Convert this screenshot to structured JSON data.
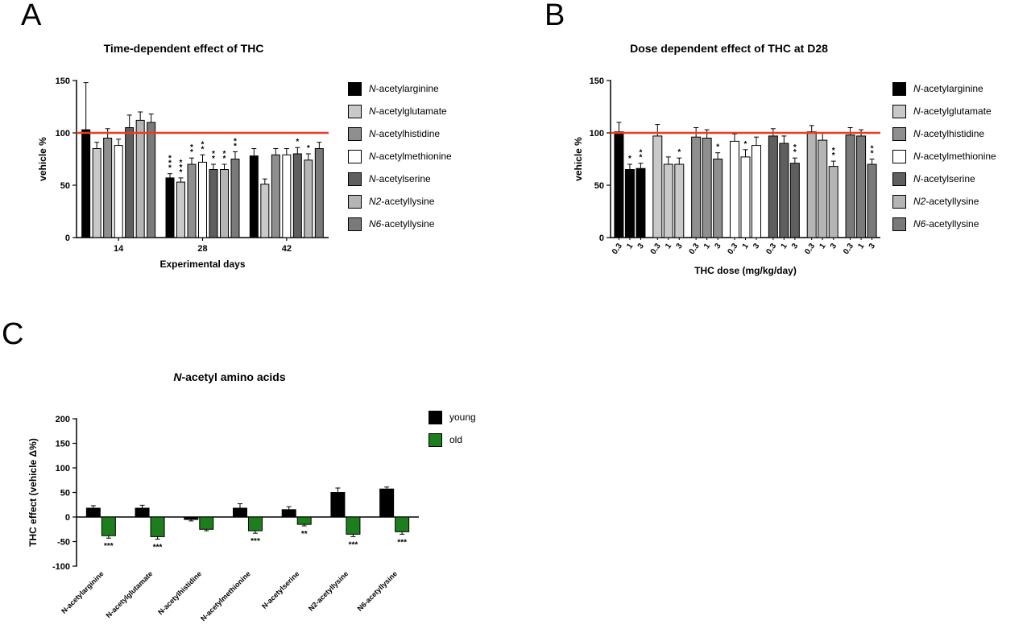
{
  "figure": {
    "panels": {
      "a": {
        "label": "A",
        "title": "Time-dependent effect of THC"
      },
      "b": {
        "label": "B",
        "title": "Dose dependent effect of THC at D28"
      },
      "c": {
        "label": "C",
        "title": "N-acetyl amino acids"
      }
    }
  },
  "colors": {
    "reference_line": "#ee3b23",
    "young": "#000000",
    "old": "#1e7e1e",
    "axis": "#000000"
  },
  "chart_data": [
    {
      "id": "a",
      "type": "bar",
      "title": "Time-dependent effect of THC",
      "xlabel": "Experimental days",
      "ylabel": "vehicle %",
      "ylim": [
        0,
        150
      ],
      "yticks": [
        0,
        50,
        100,
        150
      ],
      "reference_line": 100,
      "legend_position": "right",
      "categories": [
        "14",
        "28",
        "42"
      ],
      "series": [
        {
          "name": "N-acetylarginine",
          "color": "#000000",
          "values": [
            103,
            57,
            78
          ],
          "errors": [
            45,
            4,
            7
          ],
          "sig": [
            "",
            "***",
            ""
          ]
        },
        {
          "name": "N-acetylglutamate",
          "color": "#c9c9c9",
          "values": [
            85,
            53,
            51
          ],
          "errors": [
            6,
            4,
            5
          ],
          "sig": [
            "",
            "***",
            ""
          ]
        },
        {
          "name": "N-acetylhistidine",
          "color": "#8f8f8f",
          "values": [
            95,
            70,
            79
          ],
          "errors": [
            9,
            6,
            6
          ],
          "sig": [
            "",
            "**",
            ""
          ]
        },
        {
          "name": "N-acetylmethionine",
          "color": "#ffffff",
          "values": [
            88,
            72,
            79
          ],
          "errors": [
            6,
            7,
            6
          ],
          "sig": [
            "",
            "**",
            ""
          ]
        },
        {
          "name": "N-acetylserine",
          "color": "#5f5f5f",
          "values": [
            105,
            65,
            80
          ],
          "errors": [
            12,
            5,
            6
          ],
          "sig": [
            "",
            "**",
            "*"
          ]
        },
        {
          "name": "N2-acetyllysine",
          "color": "#b5b5b5",
          "values": [
            112,
            65,
            74
          ],
          "errors": [
            8,
            5,
            6
          ],
          "sig": [
            "",
            "**",
            "*"
          ]
        },
        {
          "name": "N6-acetyllysine",
          "color": "#7a7a7a",
          "values": [
            110,
            75,
            85
          ],
          "errors": [
            8,
            7,
            6
          ],
          "sig": [
            "",
            "**",
            ""
          ]
        }
      ]
    },
    {
      "id": "b",
      "type": "bar",
      "title": "Dose dependent effect of THC at D28",
      "xlabel": "THC dose (mg/kg/day)",
      "ylabel": "vehicle %",
      "ylim": [
        0,
        150
      ],
      "yticks": [
        0,
        50,
        100,
        150
      ],
      "reference_line": 100,
      "legend_position": "right",
      "dose_labels": [
        "0.3",
        "1",
        "3"
      ],
      "groups": [
        {
          "name": "N-acetylarginine",
          "color": "#000000",
          "values": [
            101,
            65,
            66
          ],
          "errors": [
            9,
            5,
            5
          ],
          "sig": [
            "",
            "*",
            "**"
          ]
        },
        {
          "name": "N-acetylglutamate",
          "color": "#c9c9c9",
          "values": [
            97,
            70,
            70
          ],
          "errors": [
            11,
            7,
            6
          ],
          "sig": [
            "",
            "",
            "*"
          ]
        },
        {
          "name": "N-acetylhistidine",
          "color": "#8f8f8f",
          "values": [
            96,
            95,
            75
          ],
          "errors": [
            9,
            8,
            6
          ],
          "sig": [
            "",
            "",
            "*"
          ]
        },
        {
          "name": "N-acetylmethionine",
          "color": "#ffffff",
          "values": [
            92,
            77,
            88
          ],
          "errors": [
            7,
            7,
            8
          ],
          "sig": [
            "",
            "*",
            ""
          ]
        },
        {
          "name": "N-acetylserine",
          "color": "#5f5f5f",
          "values": [
            97,
            90,
            71
          ],
          "errors": [
            7,
            7,
            5
          ],
          "sig": [
            "",
            "",
            "**"
          ]
        },
        {
          "name": "N2-acetyllysine",
          "color": "#b5b5b5",
          "values": [
            101,
            93,
            68
          ],
          "errors": [
            6,
            7,
            5
          ],
          "sig": [
            "",
            "",
            "**"
          ]
        },
        {
          "name": "N6-acetyllysine",
          "color": "#7a7a7a",
          "values": [
            98,
            97,
            70
          ],
          "errors": [
            7,
            6,
            5
          ],
          "sig": [
            "",
            "",
            "**"
          ]
        }
      ]
    },
    {
      "id": "c",
      "type": "bar",
      "title": "N-acetyl amino acids",
      "xlabel": "",
      "ylabel": "THC effect (vehicle Δ%)",
      "ylim": [
        -100,
        200
      ],
      "yticks": [
        -100,
        -50,
        0,
        50,
        100,
        150,
        200
      ],
      "legend_position": "right",
      "categories": [
        "N-acetylarginine",
        "N-acetylglutamate",
        "N-acetylhistidine",
        "N-acetylmethionine",
        "N-acetylserine",
        "N2-acetyllysine",
        "N6-acetyllysine"
      ],
      "series": [
        {
          "name": "young",
          "color": "#000000",
          "values": [
            18,
            18,
            -5,
            18,
            15,
            50,
            57
          ],
          "errors": [
            5,
            6,
            3,
            9,
            6,
            9,
            4
          ],
          "sig": [
            "",
            "",
            "",
            "",
            "",
            "",
            ""
          ]
        },
        {
          "name": "old",
          "color": "#1e7e1e",
          "values": [
            -38,
            -40,
            -25,
            -28,
            -15,
            -35,
            -30
          ],
          "errors": [
            5,
            5,
            3,
            5,
            3,
            5,
            5
          ],
          "sig": [
            "***",
            "***",
            "",
            "***",
            "**",
            "***",
            "***"
          ]
        }
      ]
    }
  ]
}
